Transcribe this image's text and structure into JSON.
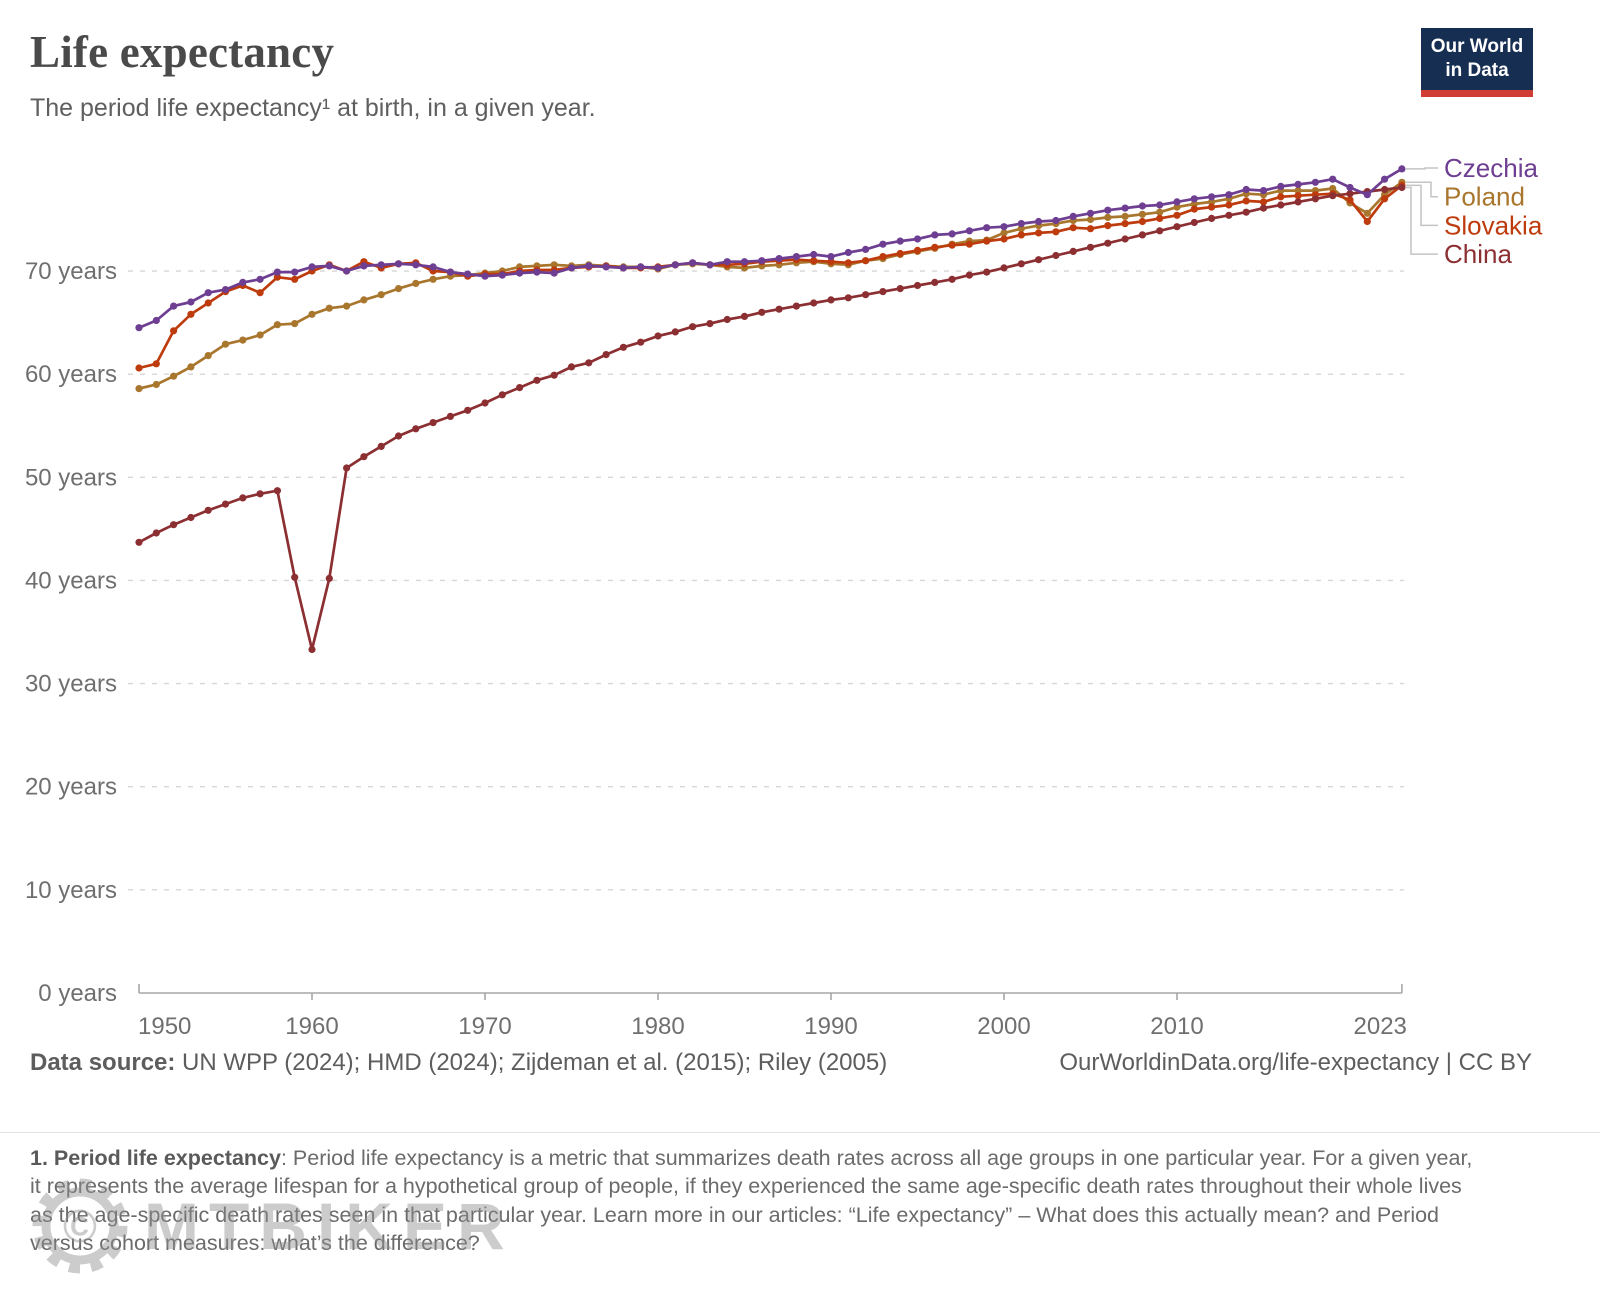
{
  "header": {
    "title": "Life expectancy",
    "subtitle": "The period life expectancy¹ at birth, in a given year.",
    "logo_line1": "Our World",
    "logo_line2": "in Data",
    "logo_bg": "#152e52",
    "logo_strip": "#cf3d34"
  },
  "chart_data": {
    "type": "line",
    "title": "Life expectancy",
    "xlabel": "",
    "ylabel": "",
    "x": {
      "start": 1950,
      "end": 2023,
      "step": 1
    },
    "ylim": [
      0,
      81
    ],
    "grid": "horizontal-dashed",
    "legend_position": "right",
    "y_ticks": [
      {
        "value": 0,
        "label": "0 years"
      },
      {
        "value": 10,
        "label": "10 years"
      },
      {
        "value": 20,
        "label": "20 years"
      },
      {
        "value": 30,
        "label": "30 years"
      },
      {
        "value": 40,
        "label": "40 years"
      },
      {
        "value": 50,
        "label": "50 years"
      },
      {
        "value": 60,
        "label": "60 years"
      },
      {
        "value": 70,
        "label": "70 years"
      }
    ],
    "x_ticks": [
      {
        "value": 1950,
        "label": "1950"
      },
      {
        "value": 1960,
        "label": "1960"
      },
      {
        "value": 1970,
        "label": "1970"
      },
      {
        "value": 1980,
        "label": "1980"
      },
      {
        "value": 1990,
        "label": "1990"
      },
      {
        "value": 2000,
        "label": "2000"
      },
      {
        "value": 2010,
        "label": "2010"
      },
      {
        "value": 2023,
        "label": "2023"
      }
    ],
    "series": [
      {
        "name": "Czechia",
        "color": "#6D3E91",
        "values": [
          64.5,
          65.2,
          66.6,
          67.0,
          67.9,
          68.2,
          68.9,
          69.2,
          69.9,
          69.9,
          70.4,
          70.5,
          70.0,
          70.5,
          70.6,
          70.7,
          70.6,
          70.4,
          69.9,
          69.7,
          69.5,
          69.6,
          69.8,
          69.9,
          69.8,
          70.3,
          70.5,
          70.4,
          70.3,
          70.4,
          70.3,
          70.6,
          70.8,
          70.6,
          70.9,
          70.9,
          71.0,
          71.2,
          71.4,
          71.6,
          71.4,
          71.8,
          72.1,
          72.6,
          72.9,
          73.1,
          73.5,
          73.6,
          73.9,
          74.2,
          74.3,
          74.6,
          74.8,
          74.9,
          75.3,
          75.6,
          75.9,
          76.1,
          76.3,
          76.4,
          76.7,
          77.0,
          77.2,
          77.4,
          77.9,
          77.8,
          78.2,
          78.4,
          78.6,
          78.9,
          78.1,
          77.4,
          78.9,
          79.9
        ]
      },
      {
        "name": "Poland",
        "color": "#A9762E",
        "values": [
          58.6,
          59.0,
          59.8,
          60.7,
          61.8,
          62.9,
          63.3,
          63.8,
          64.8,
          64.9,
          65.8,
          66.4,
          66.6,
          67.2,
          67.7,
          68.3,
          68.8,
          69.2,
          69.5,
          69.6,
          69.8,
          70.0,
          70.4,
          70.5,
          70.6,
          70.5,
          70.6,
          70.5,
          70.4,
          70.4,
          70.2,
          70.6,
          70.7,
          70.6,
          70.4,
          70.3,
          70.5,
          70.6,
          70.8,
          70.9,
          70.7,
          70.6,
          71.0,
          71.2,
          71.6,
          71.9,
          72.2,
          72.6,
          72.9,
          73.0,
          73.7,
          74.1,
          74.4,
          74.6,
          74.9,
          75.0,
          75.2,
          75.3,
          75.5,
          75.7,
          76.2,
          76.5,
          76.7,
          77.0,
          77.5,
          77.4,
          77.8,
          77.8,
          77.8,
          78.0,
          76.6,
          75.6,
          77.4,
          78.6
        ]
      },
      {
        "name": "Slovakia",
        "color": "#BE3B0D",
        "values": [
          60.6,
          61.0,
          64.2,
          65.8,
          66.9,
          68.0,
          68.6,
          67.9,
          69.4,
          69.2,
          70.0,
          70.6,
          70.0,
          70.9,
          70.3,
          70.7,
          70.8,
          70.0,
          69.9,
          69.5,
          69.7,
          69.7,
          70.0,
          70.1,
          70.1,
          70.3,
          70.4,
          70.5,
          70.3,
          70.3,
          70.4,
          70.6,
          70.8,
          70.6,
          70.6,
          70.7,
          70.9,
          71.0,
          71.1,
          71.0,
          70.9,
          70.8,
          71.0,
          71.4,
          71.7,
          72.0,
          72.3,
          72.5,
          72.6,
          72.9,
          73.1,
          73.5,
          73.7,
          73.8,
          74.2,
          74.1,
          74.4,
          74.6,
          74.8,
          75.1,
          75.4,
          76.0,
          76.2,
          76.4,
          76.8,
          76.7,
          77.2,
          77.3,
          77.4,
          77.5,
          76.9,
          74.8,
          77.0,
          78.3
        ]
      },
      {
        "name": "China",
        "color": "#8C2F32",
        "values": [
          43.7,
          44.6,
          45.4,
          46.1,
          46.8,
          47.4,
          48.0,
          48.4,
          48.7,
          40.3,
          33.3,
          40.2,
          50.9,
          52.0,
          53.0,
          54.0,
          54.7,
          55.3,
          55.9,
          56.5,
          57.2,
          58.0,
          58.7,
          59.4,
          59.9,
          60.7,
          61.1,
          61.9,
          62.6,
          63.1,
          63.7,
          64.1,
          64.6,
          64.9,
          65.3,
          65.6,
          66.0,
          66.3,
          66.6,
          66.9,
          67.2,
          67.4,
          67.7,
          68.0,
          68.3,
          68.6,
          68.9,
          69.2,
          69.6,
          69.9,
          70.3,
          70.7,
          71.1,
          71.5,
          71.9,
          72.3,
          72.7,
          73.1,
          73.5,
          73.9,
          74.3,
          74.7,
          75.1,
          75.4,
          75.7,
          76.1,
          76.4,
          76.7,
          77.0,
          77.3,
          77.5,
          77.7,
          77.9,
          78.1
        ]
      }
    ]
  },
  "footer": {
    "datasource_label": "Data source:",
    "datasource_value": " UN WPP (2024); HMD (2024); Zijdeman et al. (2015); Riley (2005)",
    "rights": "OurWorldinData.org/life-expectancy | CC BY"
  },
  "footnote": {
    "bold": "1. Period life expectancy",
    "text": ": Period life expectancy is a metric that summarizes death rates across all age groups in one particular year. For a given year, it represents the average lifespan for a hypothetical group of people, if they experienced the same age-specific death rates throughout their whole lives as the age-specific death rates seen in that particular year. Learn more in our articles: “Life expectancy” – What does this actually mean? and Period versus cohort measures: what’s the difference?"
  },
  "watermark": {
    "text": "MTBIKER",
    "copyright": "©"
  }
}
